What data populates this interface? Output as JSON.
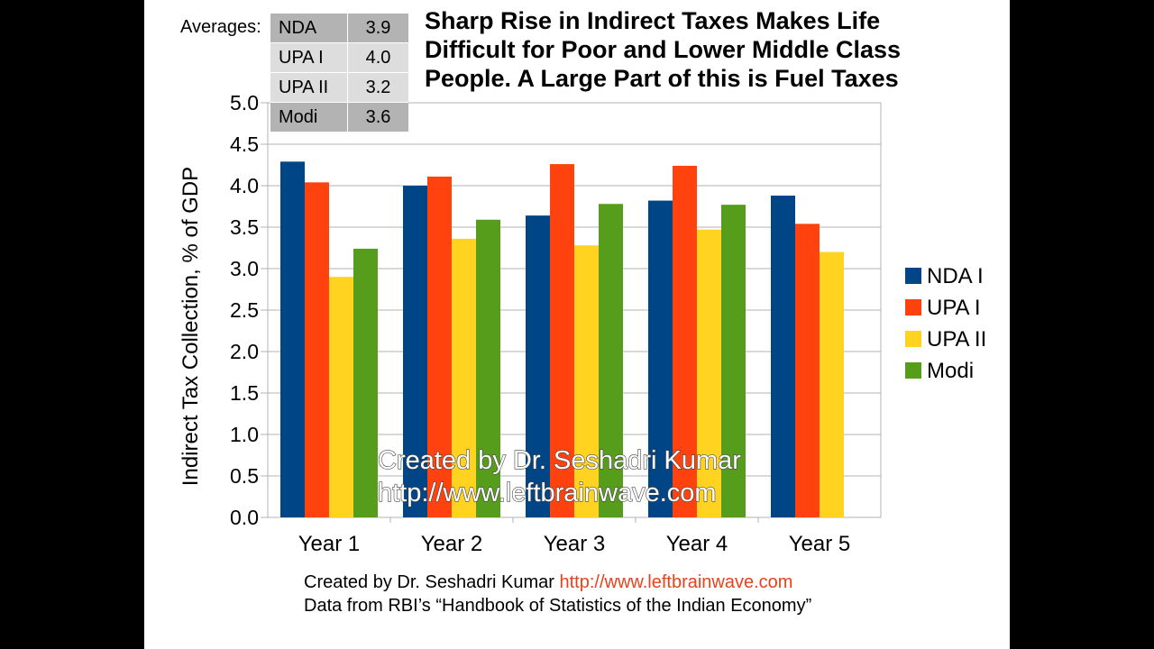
{
  "averages": {
    "label": "Averages:",
    "rows": [
      {
        "name": "NDA",
        "value": "3.9"
      },
      {
        "name": "UPA I",
        "value": "4.0"
      },
      {
        "name": "UPA II",
        "value": "3.2"
      },
      {
        "name": "Modi",
        "value": "3.6"
      }
    ]
  },
  "watermark": {
    "line1": "Created by Dr. Seshadri Kumar",
    "line2": "http://www.leftbrainwave.com"
  },
  "footer": {
    "credit": "Created by Dr. Seshadri Kumar",
    "url": "http://www.leftbrainwave.com",
    "source": "Data from RBI’s “Handbook of Statistics of the Indian Economy”"
  },
  "chart_data": {
    "type": "bar",
    "title": "Sharp Rise in Indirect Taxes Makes Life Difficult for Poor and Lower Middle Class People. A Large Part of this is Fuel Taxes",
    "xlabel": "",
    "ylabel": "Indirect Tax Collection, % of GDP",
    "categories": [
      "Year 1",
      "Year 2",
      "Year 3",
      "Year 4",
      "Year 5"
    ],
    "series": [
      {
        "name": "NDA I",
        "color": "#004586",
        "values": [
          4.29,
          4.0,
          3.64,
          3.82,
          3.88
        ]
      },
      {
        "name": "UPA I",
        "color": "#ff420e",
        "values": [
          4.04,
          4.11,
          4.26,
          4.24,
          3.54
        ]
      },
      {
        "name": "UPA II",
        "color": "#ffd320",
        "values": [
          2.9,
          3.36,
          3.28,
          3.47,
          3.2
        ]
      },
      {
        "name": "Modi",
        "color": "#579d1c",
        "values": [
          3.24,
          3.59,
          3.78,
          3.77,
          null
        ]
      }
    ],
    "ylim": [
      0,
      5
    ],
    "yticks": [
      "0.0",
      "0.5",
      "1.0",
      "1.5",
      "2.0",
      "2.5",
      "3.0",
      "3.5",
      "4.0",
      "4.5",
      "5.0"
    ],
    "grid": true,
    "legend_position": "right"
  }
}
